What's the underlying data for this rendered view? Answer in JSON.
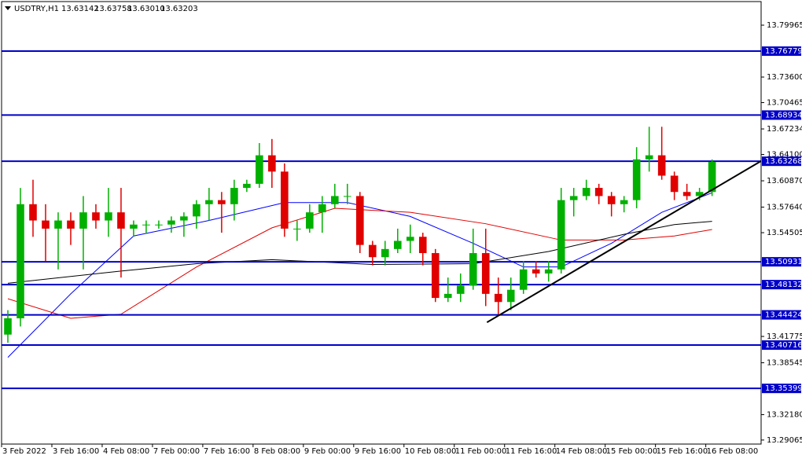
{
  "chart_data": {
    "type": "candlestick",
    "title": "USDTRY,H1",
    "header_quote": [
      "13.63142",
      "13.63758",
      "13.63010",
      "13.63203"
    ],
    "categories": [
      "3 Feb 2022",
      null,
      null,
      null,
      "3 Feb 16:00",
      null,
      null,
      null,
      "4 Feb 08:00",
      null,
      null,
      null,
      "7 Feb 00:00",
      null,
      null,
      null,
      "7 Feb 16:00",
      null,
      null,
      null,
      "8 Feb 08:00",
      null,
      null,
      null,
      "9 Feb 00:00",
      null,
      null,
      null,
      "9 Feb 16:00",
      null,
      null,
      null,
      "10 Feb 08:00",
      null,
      null,
      null,
      "11 Feb 00:00",
      null,
      null,
      null,
      "11 Feb 16:00",
      null,
      null,
      null,
      "14 Feb 08:00",
      null,
      null,
      null,
      "15 Feb 00:00",
      null,
      null,
      null,
      "15 Feb 16:00",
      null,
      null,
      null,
      "16 Feb 08:00"
    ],
    "candles": [
      [
        13.42,
        13.45,
        13.41,
        13.44
      ],
      [
        13.44,
        13.6,
        13.43,
        13.58
      ],
      [
        13.58,
        13.61,
        13.54,
        13.56
      ],
      [
        13.56,
        13.58,
        13.51,
        13.55
      ],
      [
        13.55,
        13.57,
        13.5,
        13.56
      ],
      [
        13.56,
        13.57,
        13.53,
        13.55
      ],
      [
        13.55,
        13.59,
        13.5,
        13.57
      ],
      [
        13.57,
        13.58,
        13.55,
        13.56
      ],
      [
        13.56,
        13.6,
        13.54,
        13.57
      ],
      [
        13.57,
        13.6,
        13.49,
        13.55
      ],
      [
        13.55,
        13.56,
        13.54,
        13.555
      ],
      [
        13.555,
        13.56,
        13.545,
        13.555
      ],
      [
        13.555,
        13.56,
        13.55,
        13.555
      ],
      [
        13.555,
        13.565,
        13.545,
        13.56
      ],
      [
        13.56,
        13.57,
        13.54,
        13.565
      ],
      [
        13.565,
        13.585,
        13.55,
        13.58
      ],
      [
        13.58,
        13.6,
        13.56,
        13.585
      ],
      [
        13.585,
        13.595,
        13.545,
        13.58
      ],
      [
        13.58,
        13.61,
        13.56,
        13.6
      ],
      [
        13.6,
        13.61,
        13.595,
        13.605
      ],
      [
        13.605,
        13.655,
        13.6,
        13.64
      ],
      [
        13.64,
        13.66,
        13.6,
        13.62
      ],
      [
        13.62,
        13.63,
        13.54,
        13.55
      ],
      [
        13.55,
        13.56,
        13.535,
        13.55
      ],
      [
        13.55,
        13.58,
        13.545,
        13.57
      ],
      [
        13.57,
        13.59,
        13.545,
        13.58
      ],
      [
        13.58,
        13.605,
        13.575,
        13.59
      ],
      [
        13.59,
        13.605,
        13.58,
        13.59
      ],
      [
        13.59,
        13.595,
        13.52,
        13.53
      ],
      [
        13.53,
        13.535,
        13.505,
        13.515
      ],
      [
        13.515,
        13.535,
        13.505,
        13.525
      ],
      [
        13.525,
        13.55,
        13.52,
        13.535
      ],
      [
        13.535,
        13.555,
        13.52,
        13.54
      ],
      [
        13.54,
        13.545,
        13.505,
        13.52
      ],
      [
        13.52,
        13.525,
        13.46,
        13.465
      ],
      [
        13.465,
        13.49,
        13.46,
        13.47
      ],
      [
        13.47,
        13.495,
        13.46,
        13.48
      ],
      [
        13.48,
        13.55,
        13.475,
        13.52
      ],
      [
        13.52,
        13.55,
        13.455,
        13.47
      ],
      [
        13.47,
        13.49,
        13.445,
        13.46
      ],
      [
        13.46,
        13.49,
        13.45,
        13.475
      ],
      [
        13.475,
        13.51,
        13.47,
        13.5
      ],
      [
        13.5,
        13.51,
        13.49,
        13.495
      ],
      [
        13.495,
        13.51,
        13.485,
        13.5
      ],
      [
        13.5,
        13.6,
        13.495,
        13.585
      ],
      [
        13.585,
        13.6,
        13.565,
        13.59
      ],
      [
        13.59,
        13.61,
        13.585,
        13.6
      ],
      [
        13.6,
        13.605,
        13.58,
        13.59
      ],
      [
        13.59,
        13.595,
        13.565,
        13.58
      ],
      [
        13.58,
        13.59,
        13.57,
        13.585
      ],
      [
        13.585,
        13.65,
        13.575,
        13.635
      ],
      [
        13.635,
        13.675,
        13.62,
        13.64
      ],
      [
        13.64,
        13.675,
        13.61,
        13.615
      ],
      [
        13.615,
        13.62,
        13.585,
        13.595
      ],
      [
        13.595,
        13.605,
        13.585,
        13.59
      ],
      [
        13.59,
        13.6,
        13.585,
        13.595
      ],
      [
        13.595,
        13.635,
        13.59,
        13.632
      ]
    ],
    "up_color": "#00b000",
    "down_color": "#e00000",
    "averages": [
      {
        "color": "#0000ff",
        "x": [
          0,
          5,
          10,
          16,
          22,
          27,
          32,
          37,
          41,
          44,
          48,
          52,
          56
        ],
        "values": [
          13.392,
          13.47,
          13.541,
          13.56,
          13.582,
          13.582,
          13.565,
          13.532,
          13.503,
          13.503,
          13.532,
          13.57,
          13.594
        ]
      },
      {
        "color": "#e00000",
        "x": [
          0,
          5,
          9,
          15,
          21,
          26,
          32,
          38,
          44,
          49,
          53,
          56
        ],
        "values": [
          13.464,
          13.44,
          13.445,
          13.503,
          13.551,
          13.575,
          13.57,
          13.556,
          13.536,
          13.536,
          13.541,
          13.549
        ]
      },
      {
        "color": "#000000",
        "x": [
          0,
          9,
          15,
          21,
          29,
          37,
          43,
          49,
          53,
          56
        ],
        "values": [
          13.483,
          13.498,
          13.507,
          13.512,
          13.506,
          13.507,
          13.522,
          13.543,
          13.555,
          13.559
        ]
      }
    ],
    "trendline": {
      "x": [
        38.6,
        60.4
      ],
      "values": [
        13.435,
        13.633
      ],
      "color": "#000000"
    },
    "levels": [
      13.76779,
      13.68934,
      13.63268,
      13.50931,
      13.48132,
      13.44424,
      13.40716,
      13.35399
    ],
    "level_color": "#0000c8",
    "xlim": [
      0,
      60.4
    ],
    "ylim": [
      13.2857,
      13.8286
    ],
    "yticks": [
      13.79965,
      {
        "value": 13.736,
        "label": "13.73600"
      },
      13.70465,
      13.67234,
      {
        "value": 13.641,
        "label": "13.64100"
      },
      {
        "value": 13.6087,
        "label": "13.60870"
      },
      {
        "value": 13.5764,
        "label": "13.57640"
      },
      13.54505,
      13.41775,
      13.38545,
      {
        "value": 13.3218,
        "label": "13.32180"
      },
      13.29065
    ]
  }
}
